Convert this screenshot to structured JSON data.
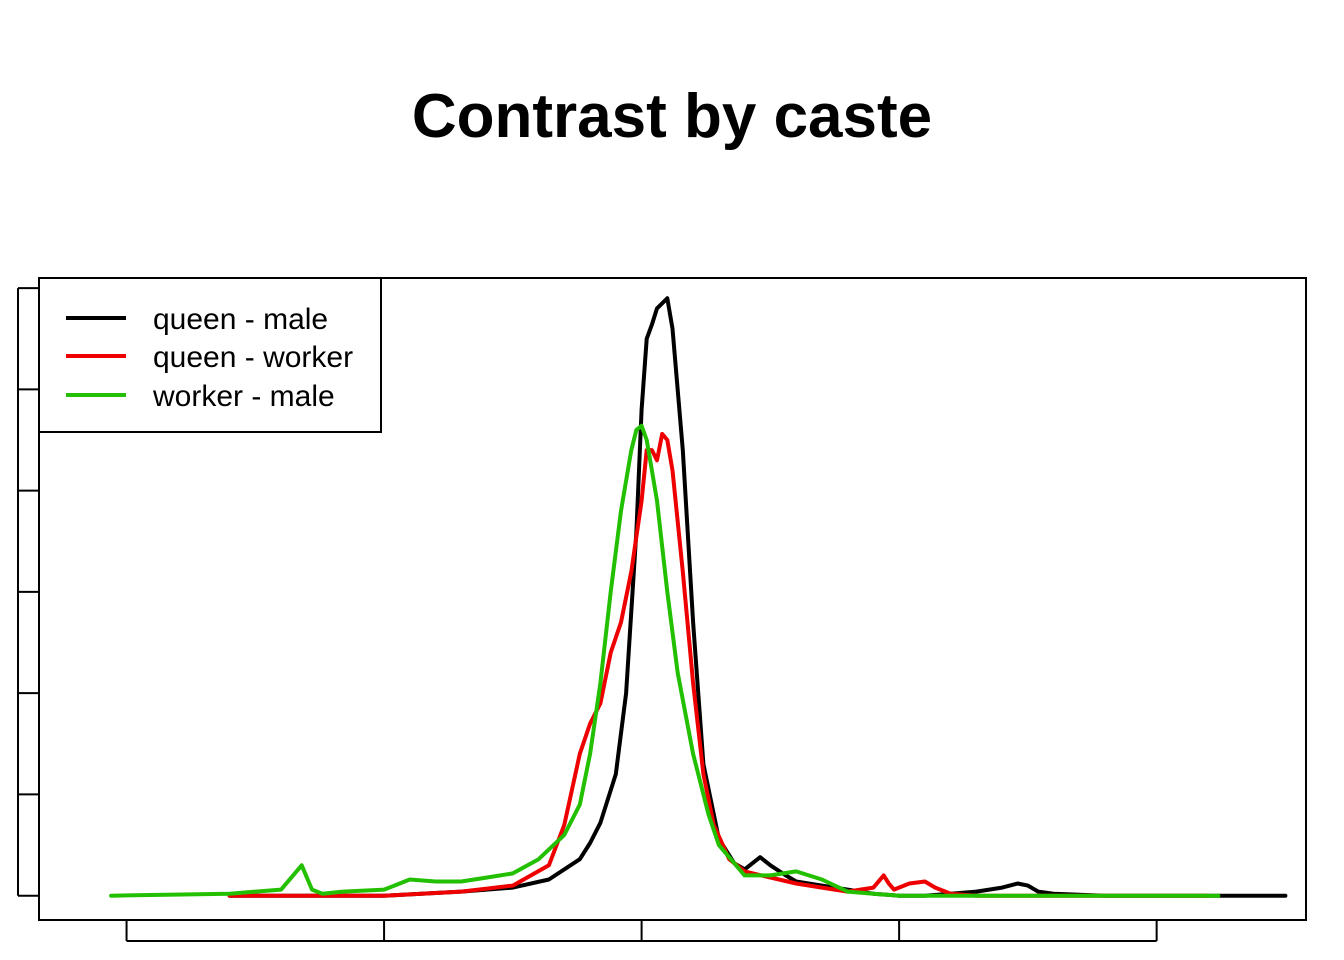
{
  "chart_data": {
    "type": "line",
    "title": "Contrast by caste",
    "xlabel": "",
    "ylabel": "",
    "xlim": [
      -1.17,
      1.29
    ],
    "ylim": [
      -0.12,
      3.05
    ],
    "x_ticks": [
      -1.0,
      -0.5,
      0.0,
      0.5,
      1.0
    ],
    "y_ticks": [
      0.0,
      0.5,
      1.0,
      1.5,
      2.0,
      2.5,
      3.0
    ],
    "show_tick_labels": false,
    "grid": false,
    "legend": {
      "position": "top-left",
      "entries": [
        "queen - male",
        "queen - worker",
        "worker - male"
      ]
    },
    "series": [
      {
        "name": "queen - male",
        "color": "#000000",
        "x": [
          -0.8,
          -0.5,
          -0.35,
          -0.25,
          -0.18,
          -0.12,
          -0.1,
          -0.08,
          -0.05,
          -0.03,
          -0.01,
          0.0,
          0.01,
          0.02,
          0.03,
          0.05,
          0.06,
          0.08,
          0.1,
          0.12,
          0.15,
          0.18,
          0.2,
          0.23,
          0.25,
          0.28,
          0.3,
          0.35,
          0.4,
          0.45,
          0.5,
          0.55,
          0.6,
          0.65,
          0.7,
          0.73,
          0.75,
          0.77,
          0.8,
          0.9,
          1.0,
          1.1,
          1.25
        ],
        "y": [
          0.0,
          0.0,
          0.02,
          0.04,
          0.08,
          0.18,
          0.26,
          0.36,
          0.6,
          1.0,
          1.8,
          2.4,
          2.75,
          2.82,
          2.9,
          2.95,
          2.8,
          2.2,
          1.35,
          0.65,
          0.28,
          0.16,
          0.13,
          0.19,
          0.15,
          0.1,
          0.07,
          0.05,
          0.03,
          0.01,
          0.0,
          0.0,
          0.01,
          0.02,
          0.04,
          0.06,
          0.05,
          0.02,
          0.01,
          0.0,
          0.0,
          0.0,
          0.0
        ]
      },
      {
        "name": "queen - worker",
        "color": "#ee0000",
        "x": [
          -0.8,
          -0.5,
          -0.35,
          -0.25,
          -0.18,
          -0.15,
          -0.12,
          -0.1,
          -0.08,
          -0.06,
          -0.04,
          -0.02,
          0.0,
          0.01,
          0.02,
          0.03,
          0.04,
          0.05,
          0.06,
          0.08,
          0.1,
          0.12,
          0.14,
          0.17,
          0.2,
          0.25,
          0.3,
          0.35,
          0.4,
          0.45,
          0.47,
          0.48,
          0.49,
          0.52,
          0.55,
          0.57,
          0.6,
          0.65,
          0.8,
          1.1
        ],
        "y": [
          0.0,
          0.0,
          0.02,
          0.05,
          0.15,
          0.35,
          0.7,
          0.85,
          0.95,
          1.2,
          1.35,
          1.6,
          1.95,
          2.2,
          2.2,
          2.15,
          2.28,
          2.25,
          2.1,
          1.6,
          1.05,
          0.6,
          0.35,
          0.18,
          0.12,
          0.09,
          0.06,
          0.04,
          0.02,
          0.04,
          0.1,
          0.06,
          0.03,
          0.06,
          0.07,
          0.04,
          0.01,
          0.0,
          0.0,
          0.0
        ]
      },
      {
        "name": "worker - male",
        "color": "#22c000",
        "x": [
          -1.03,
          -0.8,
          -0.7,
          -0.66,
          -0.64,
          -0.62,
          -0.58,
          -0.5,
          -0.48,
          -0.45,
          -0.4,
          -0.35,
          -0.3,
          -0.25,
          -0.2,
          -0.15,
          -0.12,
          -0.1,
          -0.08,
          -0.06,
          -0.04,
          -0.02,
          -0.01,
          0.0,
          0.01,
          0.02,
          0.03,
          0.05,
          0.07,
          0.1,
          0.13,
          0.15,
          0.2,
          0.25,
          0.3,
          0.35,
          0.4,
          0.45,
          0.5,
          0.6,
          0.8,
          1.0,
          1.12
        ],
        "y": [
          0.0,
          0.01,
          0.03,
          0.15,
          0.03,
          0.01,
          0.02,
          0.03,
          0.05,
          0.08,
          0.07,
          0.07,
          0.09,
          0.11,
          0.18,
          0.3,
          0.45,
          0.7,
          1.05,
          1.5,
          1.9,
          2.2,
          2.3,
          2.32,
          2.25,
          2.1,
          1.95,
          1.5,
          1.1,
          0.7,
          0.4,
          0.25,
          0.1,
          0.1,
          0.12,
          0.08,
          0.02,
          0.01,
          0.0,
          0.0,
          0.0,
          0.0,
          0.0
        ]
      }
    ]
  }
}
